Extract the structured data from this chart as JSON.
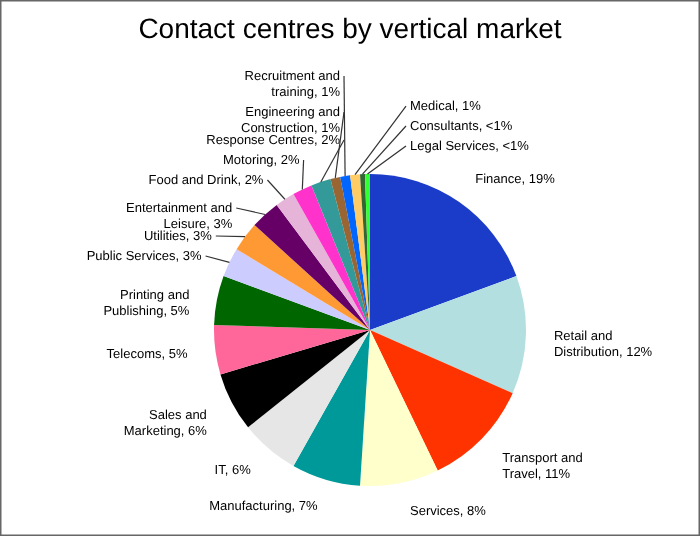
{
  "chart_data": {
    "type": "pie",
    "title": "Contact centres by vertical market",
    "categories": [
      "Finance",
      "Retail and Distribution",
      "Transport and Travel",
      "Services",
      "Manufacturing",
      "IT",
      "Sales and Marketing",
      "Telecoms",
      "Printing and Publishing",
      "Public Services",
      "Utilities",
      "Entertainment and Leisure",
      "Food and Drink",
      "Motoring",
      "Response Centres",
      "Engineering and Construction",
      "Recruitment and training",
      "Medical",
      "Consultants",
      "Legal Services"
    ],
    "values": [
      19,
      12,
      11,
      8,
      7,
      6,
      6,
      5,
      5,
      3,
      3,
      3,
      2,
      2,
      2,
      1,
      1,
      1,
      0.5,
      0.5
    ],
    "value_labels": [
      "19%",
      "12%",
      "11%",
      "8%",
      "7%",
      "6%",
      "6%",
      "5%",
      "5%",
      "3%",
      "3%",
      "3%",
      "2%",
      "2%",
      "2%",
      "1%",
      "1%",
      "1%",
      "<1%",
      "<1%"
    ],
    "colors": [
      "#1a3cc8",
      "#b3dfe0",
      "#ff3300",
      "#ffffcc",
      "#009999",
      "#e6e6e6",
      "#000000",
      "#ff6699",
      "#006600",
      "#ccccff",
      "#ff9933",
      "#660066",
      "#e6b3d9",
      "#ff33cc",
      "#339999",
      "#996633",
      "#0066ff",
      "#ffcc66",
      "#336633",
      "#33ff33"
    ]
  }
}
